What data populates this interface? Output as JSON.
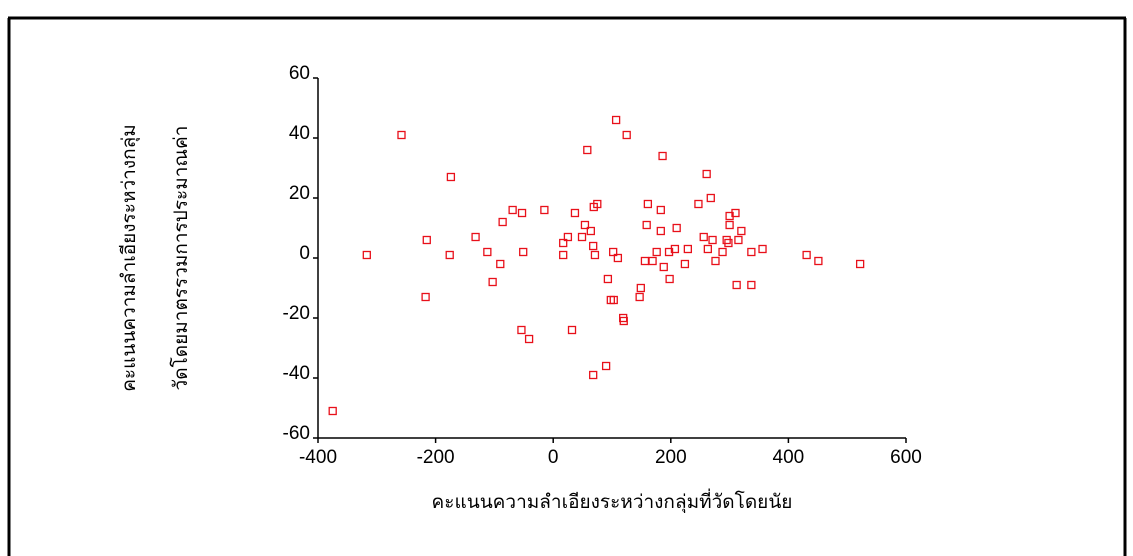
{
  "chart_data": {
    "type": "scatter",
    "xlabel": "คะแนนความลำเอียงระหว่างกลุ่มที่วัดโดยนัย",
    "ylabel": [
      "คะแนนความลำเอียงระหว่างกลุ่ม",
      "วัดโดยมาตรรวมการประมาณค่า"
    ],
    "color": "#e8101a",
    "xlim": [
      -400,
      600
    ],
    "xticks": [
      -400,
      -200,
      0,
      200,
      400,
      600
    ],
    "ylim": [
      -60,
      60
    ],
    "yticks": [
      -60,
      -40,
      -20,
      0,
      20,
      40,
      60
    ],
    "x": [
      -375,
      -317,
      -258,
      -215,
      -217,
      -176,
      -174,
      -132,
      -112,
      -103,
      -90,
      -86,
      -69,
      -53,
      -51,
      -54,
      -15,
      -41,
      17,
      17,
      25,
      37,
      32,
      49,
      54,
      58,
      64,
      68,
      69,
      75,
      71,
      68,
      90,
      93,
      98,
      103,
      102,
      110,
      107,
      119,
      120,
      125,
      147,
      149,
      156,
      159,
      161,
      169,
      176,
      183,
      183,
      186,
      188,
      197,
      198,
      207,
      210,
      224,
      229,
      247,
      256,
      261,
      263,
      268,
      271,
      276,
      288,
      295,
      298,
      300,
      300,
      310,
      312,
      315,
      320,
      337,
      337,
      356,
      431,
      451,
      522
    ],
    "values": [
      -51,
      1,
      41,
      6,
      -13,
      1,
      27,
      7,
      2,
      -8,
      -2,
      12,
      16,
      15,
      2,
      -24,
      16,
      -27,
      1,
      5,
      7,
      15,
      -24,
      7,
      11,
      36,
      9,
      4,
      17,
      18,
      1,
      -39,
      -36,
      -7,
      -14,
      -14,
      2,
      0,
      46,
      -20,
      -21,
      41,
      -13,
      -10,
      -1,
      11,
      18,
      -1,
      2,
      16,
      9,
      34,
      -3,
      2,
      -7,
      3,
      10,
      -2,
      3,
      18,
      7,
      28,
      3,
      20,
      6,
      -1,
      2,
      6,
      5,
      14,
      11,
      15,
      -9,
      6,
      9,
      2,
      -9,
      3,
      1,
      -1,
      -2
    ]
  }
}
